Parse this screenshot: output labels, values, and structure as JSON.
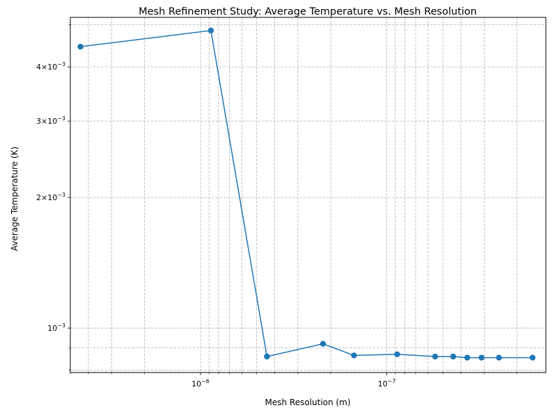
{
  "chart_data": {
    "type": "line",
    "title": "Mesh Refinement Study: Average Temperature vs. Mesh Resolution",
    "xlabel": "Mesh Resolution (m)",
    "ylabel": "Average Temperature (K)",
    "x_scale": "log",
    "y_scale": "log",
    "x_axis_inverted": true,
    "grid": "both major and minor, dashed",
    "series": [
      {
        "color": "#1f77b4",
        "marker": "circle",
        "x": [
          4.41e-06,
          8.8e-07,
          4.4e-07,
          2.2e-07,
          1.5e-07,
          8.8e-08,
          5.5e-08,
          4.4e-08,
          3.7e-08,
          3.1e-08,
          2.5e-08,
          1.65e-08
        ],
        "y": [
          0.00445,
          0.00485,
          0.00086,
          0.00092,
          0.000865,
          0.00087,
          0.00086,
          0.00086,
          0.000855,
          0.000855,
          0.000855,
          0.000855
        ]
      }
    ],
    "x_ticks": [
      {
        "value": 1e-06,
        "base": "10",
        "exp": "−6"
      },
      {
        "value": 1e-07,
        "base": "10",
        "exp": "−7"
      }
    ],
    "y_ticks": [
      {
        "value": 0.001,
        "mant": "",
        "base": "10",
        "exp": "−3"
      },
      {
        "value": 0.002,
        "mant": "2×",
        "base": "10",
        "exp": "−3"
      },
      {
        "value": 0.003,
        "mant": "3×",
        "base": "10",
        "exp": "−3"
      },
      {
        "value": 0.004,
        "mant": "4×",
        "base": "10",
        "exp": "−3"
      }
    ],
    "xlim": [
      5e-06,
      1.4e-08
    ],
    "ylim": [
      0.00079,
      0.0052
    ]
  }
}
